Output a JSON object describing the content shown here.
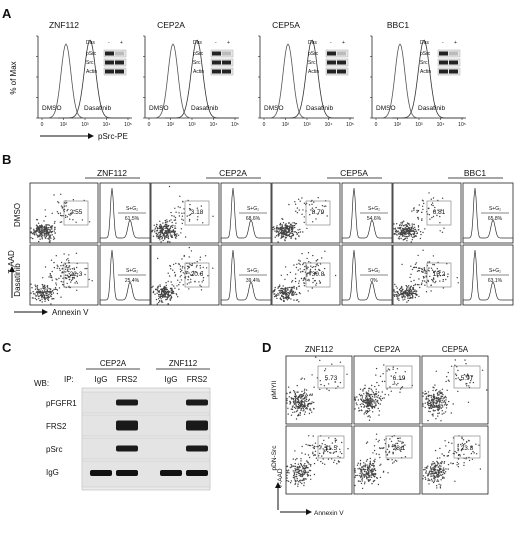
{
  "panels": {
    "A": {
      "letter": "A",
      "ylabel": "% of Max",
      "xlabel": "pSrc-PE",
      "conditions": [
        "DMSO",
        "Dasatinib"
      ],
      "blot_header": {
        "das": "Das",
        "minus": "-",
        "plus": "+"
      },
      "blot_rows": [
        "pSrc",
        "Src",
        "Actin"
      ],
      "samples": [
        "ZNF112",
        "CEP2A",
        "CEP5A",
        "BBC1"
      ],
      "ticks": [
        "0",
        "10²",
        "10³",
        "10⁴",
        "10⁵"
      ]
    },
    "B": {
      "letter": "B",
      "samples": [
        "ZNF112",
        "CEP2A",
        "CEP5A",
        "BBC1"
      ],
      "rows": [
        "DMSO",
        "Dasatinib"
      ],
      "ylabel": "7-AAD",
      "xlabel": "Annexin V",
      "gate_label": "S+G₂",
      "dmso_gate": [
        "2.55",
        "3.18",
        "8.79",
        "6.81"
      ],
      "dmso_sg2": [
        "61.5%",
        "68.6%",
        "54.6%",
        "65.8%"
      ],
      "das_gate": [
        "22.3",
        "20.6",
        "30.8",
        "15.2"
      ],
      "das_sg2": [
        "25.4%",
        "39.4%",
        "0%",
        "63.1%"
      ]
    },
    "C": {
      "letter": "C",
      "wb": "WB:",
      "ip": "IP:",
      "groups": [
        "CEP2A",
        "ZNF112"
      ],
      "lanes": [
        "IgG",
        "FRS2",
        "IgG",
        "FRS2"
      ],
      "rows": [
        "pFGFR1",
        "FRS2",
        "pSrc",
        "IgG"
      ]
    },
    "D": {
      "letter": "D",
      "samples": [
        "ZNF112",
        "CEP2A",
        "CEP5A"
      ],
      "rows": [
        "pMIYII",
        "pDN-Src"
      ],
      "ylabel": "7-AAD",
      "xlabel": "Annexin V",
      "row1": [
        "5.73",
        "6.19",
        "5.97"
      ],
      "row2": [
        "11.5",
        "28.1",
        "23.8"
      ]
    }
  }
}
